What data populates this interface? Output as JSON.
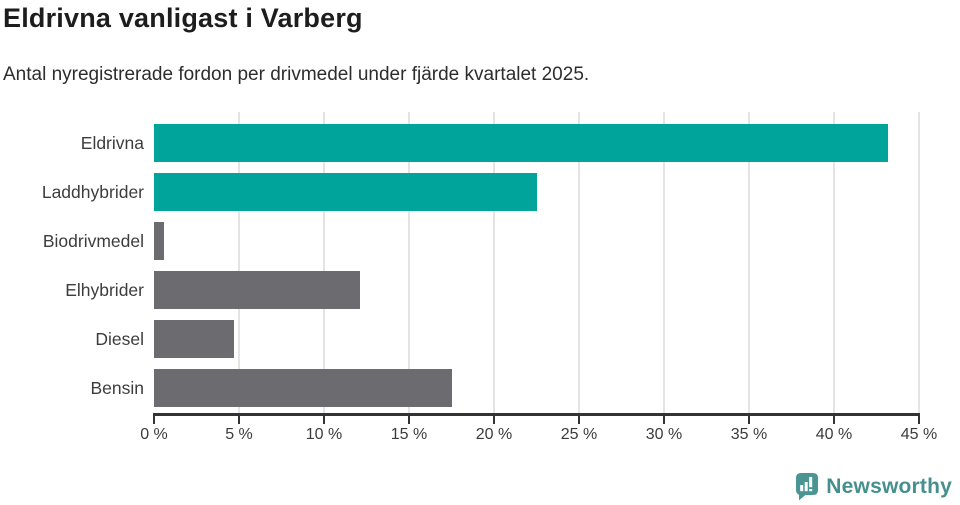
{
  "chart_data": {
    "type": "bar",
    "orientation": "horizontal",
    "title": "Eldrivna vanligast i Varberg",
    "subtitle": "Antal nyregistrerade fordon per drivmedel under fjärde kvartalet 2025.",
    "categories": [
      "Eldrivna",
      "Laddhybrider",
      "Biodrivmedel",
      "Elhybrider",
      "Diesel",
      "Bensin"
    ],
    "values": [
      43.2,
      22.5,
      0.6,
      12.1,
      4.7,
      17.5
    ],
    "unit": "%",
    "xlim": [
      0,
      45
    ],
    "x_tick_values": [
      0,
      5,
      10,
      15,
      20,
      25,
      30,
      35,
      40,
      45
    ],
    "x_tick_labels": [
      "0 %",
      "5 %",
      "10 %",
      "15 %",
      "20 %",
      "25 %",
      "30 %",
      "35 %",
      "40 %",
      "45 %"
    ],
    "bar_colors": [
      "#00a49b",
      "#00a49b",
      "#6b6b70",
      "#6b6b70",
      "#6b6b70",
      "#6b6b70"
    ],
    "legend": null,
    "grid": "vertical-light"
  },
  "colors": {
    "highlight_teal": "#00a49b",
    "neutral_gray": "#6b6b70",
    "gridline": "#e4e4e4",
    "axis": "#333333",
    "title_text": "#1d1d1d",
    "label_text": "#3d3d3d",
    "brand_teal": "#4a9492",
    "brand_text": "#45908e"
  },
  "footer": {
    "brand": "Newsworthy"
  }
}
